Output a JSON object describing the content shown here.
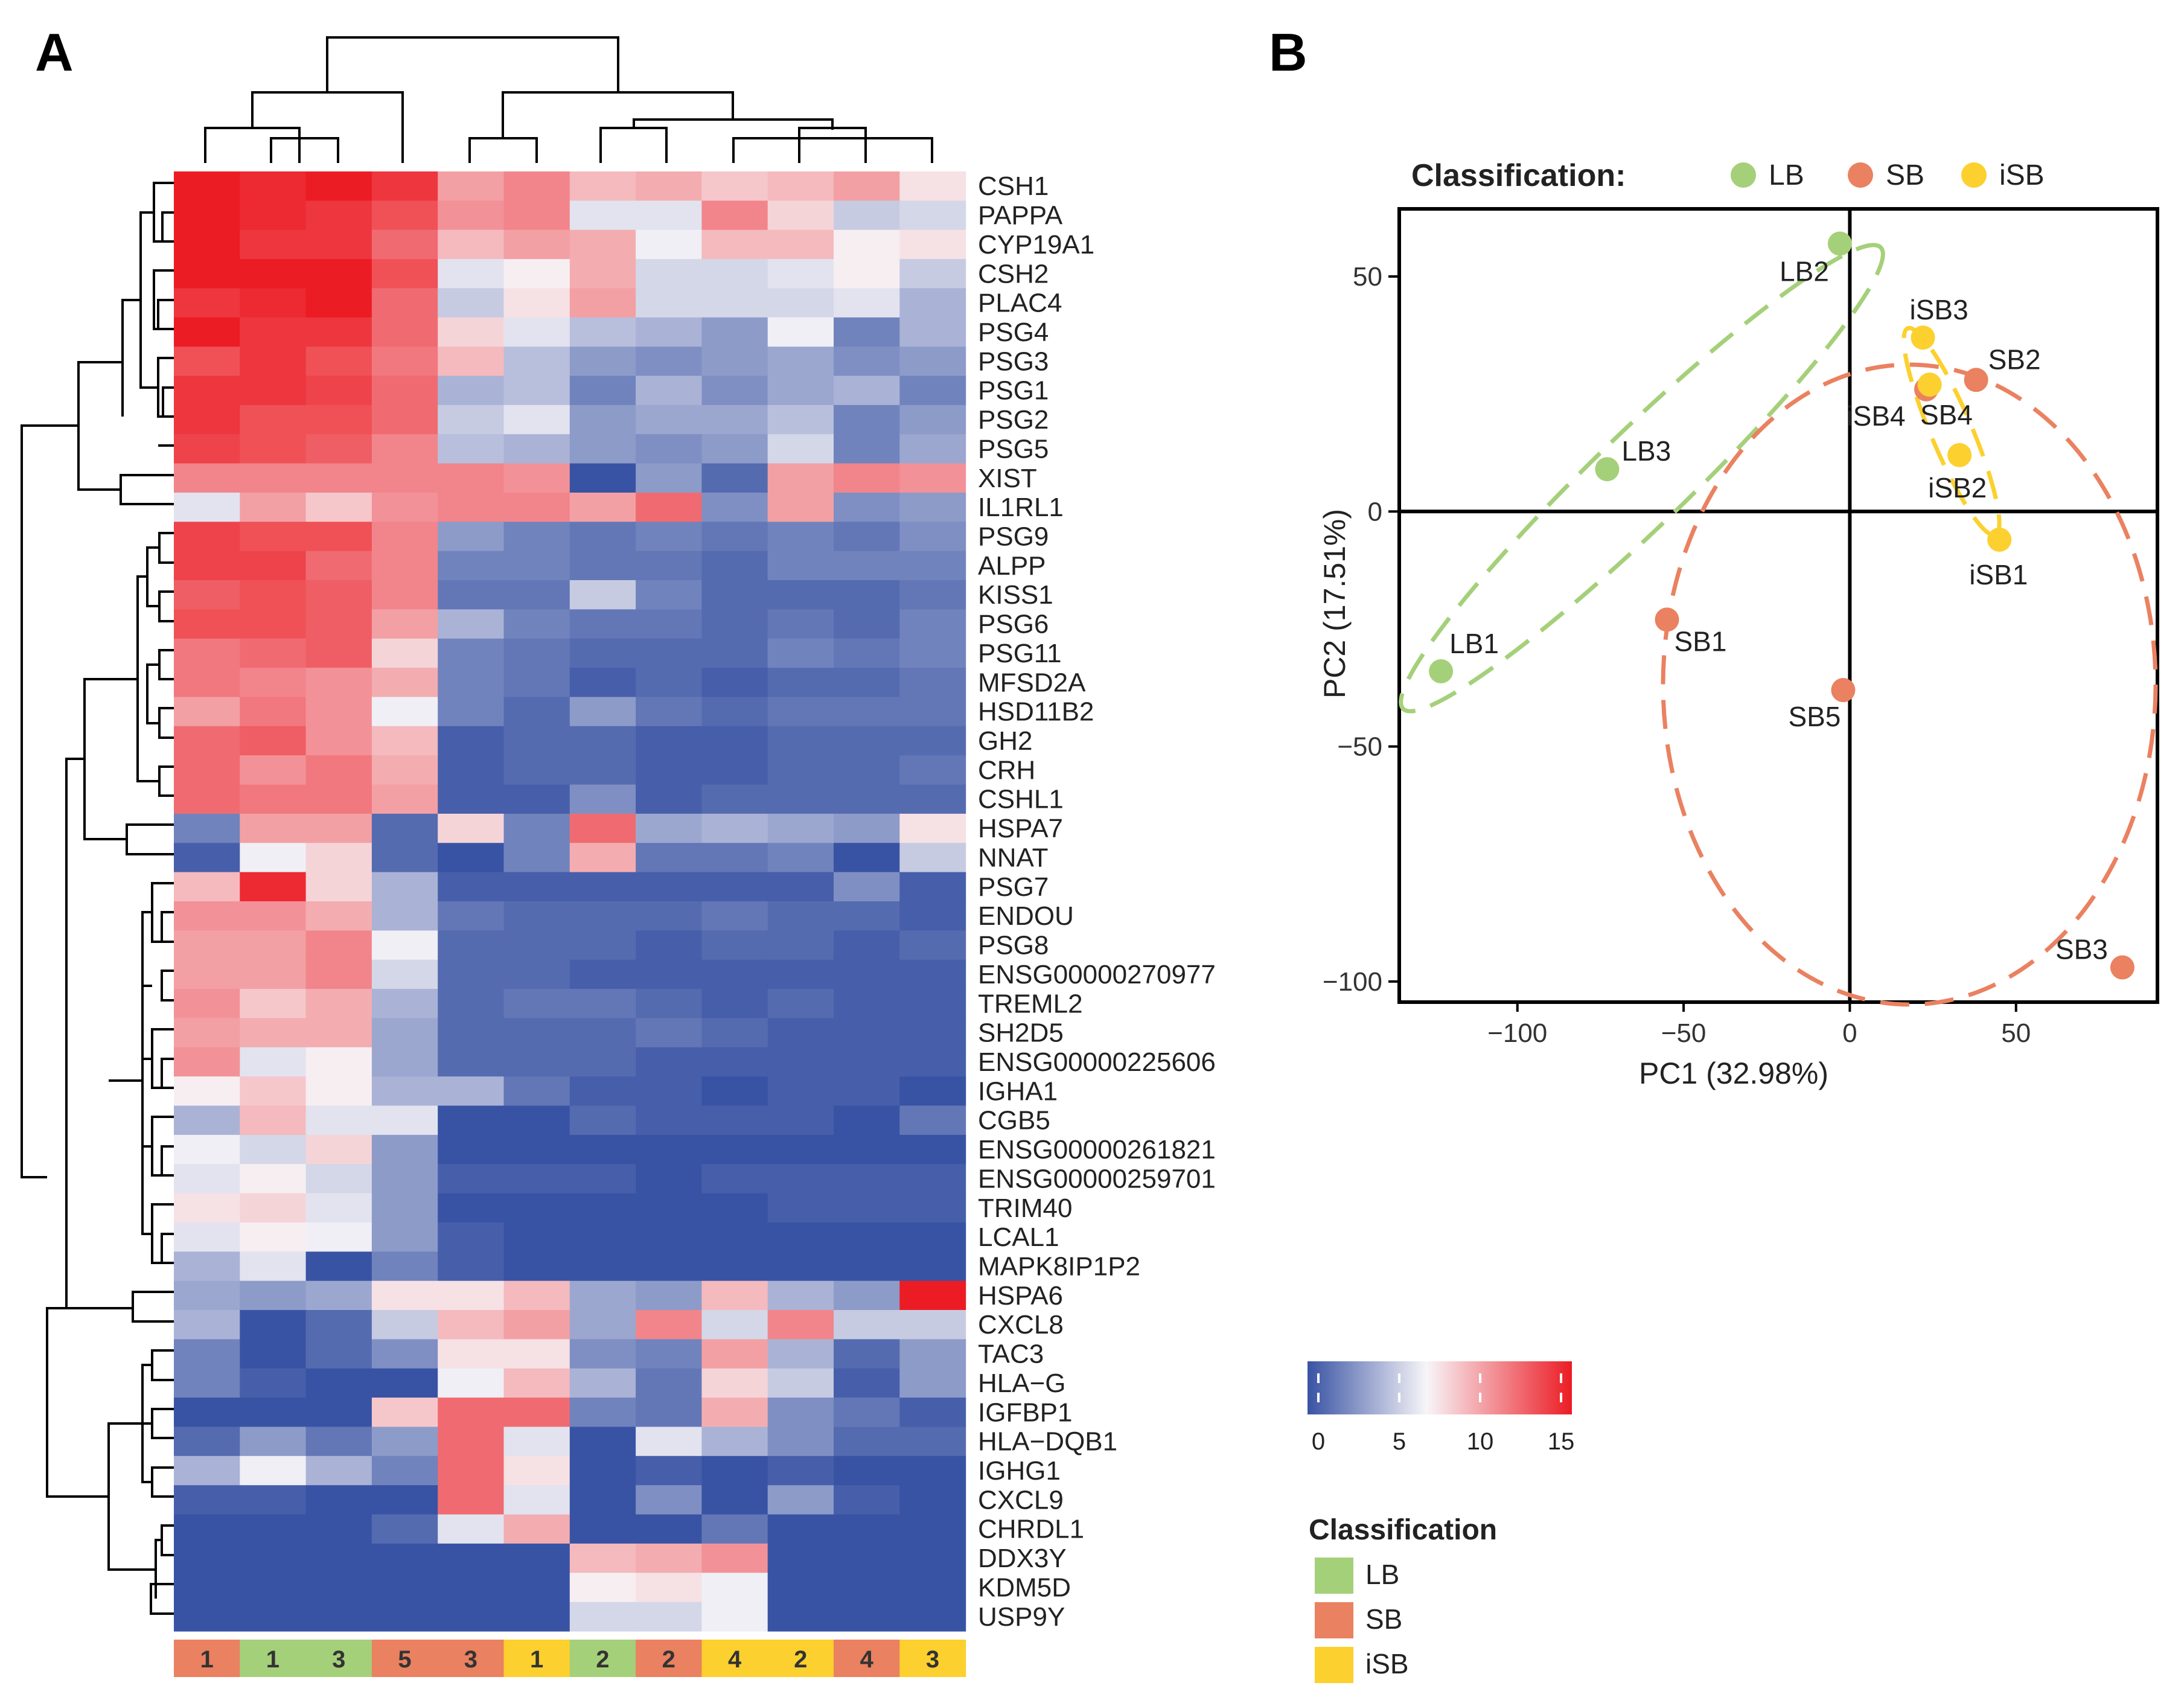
{
  "panel_labels": {
    "a": "A",
    "b": "B"
  },
  "chart_data": [
    {
      "type": "heatmap",
      "panel": "A",
      "rows": [
        "CSH1",
        "PAPPA",
        "CYP19A1",
        "CSH2",
        "PLAC4",
        "PSG4",
        "PSG3",
        "PSG1",
        "PSG2",
        "PSG5",
        "XIST",
        "IL1RL1",
        "PSG9",
        "ALPP",
        "KISS1",
        "PSG6",
        "PSG11",
        "MFSD2A",
        "HSD11B2",
        "GH2",
        "CRH",
        "CSHL1",
        "HSPA7",
        "NNAT",
        "PSG7",
        "ENDOU",
        "PSG8",
        "ENSG00000270977",
        "TREML2",
        "SH2D5",
        "ENSG00000225606",
        "IGHA1",
        "CGB5",
        "ENSG00000261821",
        "ENSG00000259701",
        "TRIM40",
        "LCAL1",
        "MAPK8IP1P2",
        "HSPA6",
        "CXCL8",
        "TAC3",
        "HLA−G",
        "IGFBP1",
        "HLA−DQB1",
        "IGHG1",
        "CXCL9",
        "CHRDL1",
        "DDX3Y",
        "KDM5D",
        "USP9Y"
      ],
      "columns": [
        {
          "label": "1",
          "class": "SB"
        },
        {
          "label": "1",
          "class": "LB"
        },
        {
          "label": "3",
          "class": "LB"
        },
        {
          "label": "5",
          "class": "SB"
        },
        {
          "label": "3",
          "class": "SB"
        },
        {
          "label": "1",
          "class": "iSB"
        },
        {
          "label": "2",
          "class": "LB"
        },
        {
          "label": "2",
          "class": "SB"
        },
        {
          "label": "4",
          "class": "iSB"
        },
        {
          "label": "2",
          "class": "iSB"
        },
        {
          "label": "4",
          "class": "SB"
        },
        {
          "label": "3",
          "class": "iSB"
        }
      ],
      "values": [
        [
          15,
          14.5,
          15,
          14,
          10,
          11,
          9,
          9.5,
          8.5,
          9,
          10,
          7.5
        ],
        [
          15,
          14.5,
          14,
          13,
          10.5,
          11,
          6,
          6,
          11,
          8,
          5,
          5.5
        ],
        [
          15,
          14,
          14,
          12,
          9,
          10,
          9.5,
          6.5,
          9,
          9,
          7,
          7.5
        ],
        [
          15,
          15,
          15,
          13,
          6,
          7,
          9.5,
          5.5,
          5.5,
          6,
          7,
          5
        ],
        [
          14,
          14.5,
          15,
          12,
          5,
          7.5,
          10,
          5.5,
          5.5,
          5.5,
          6,
          4
        ],
        [
          15,
          14,
          14,
          12,
          8,
          6,
          4.5,
          4,
          3,
          6.5,
          2,
          4
        ],
        [
          13,
          14,
          13,
          11.5,
          9,
          4.5,
          3,
          2.5,
          3,
          3.5,
          2.5,
          3
        ],
        [
          14,
          14,
          13.5,
          12,
          4,
          4.5,
          2,
          4,
          2.5,
          3.5,
          4,
          2
        ],
        [
          14,
          13,
          13,
          12,
          5,
          6,
          3,
          3.5,
          3.5,
          4.5,
          2,
          3
        ],
        [
          13.5,
          13,
          12.5,
          11,
          4.5,
          4,
          3,
          2.5,
          3,
          5.5,
          2,
          3.5
        ],
        [
          11,
          11,
          11,
          11,
          11,
          10.5,
          0,
          3,
          1,
          10,
          11,
          10.5
        ],
        [
          6,
          10,
          8.5,
          10.5,
          11,
          11,
          10,
          12,
          2.5,
          10,
          2.5,
          3
        ],
        [
          13.5,
          13,
          13,
          11,
          3,
          2,
          1.5,
          2,
          1.5,
          2,
          1.5,
          2.5
        ],
        [
          13.5,
          13.5,
          12,
          11,
          2,
          2,
          1.5,
          1.5,
          1,
          2,
          2,
          2
        ],
        [
          12.5,
          13,
          12.5,
          11,
          1.5,
          1.5,
          5,
          2,
          1,
          1,
          1,
          1.5
        ],
        [
          13,
          13,
          12.5,
          10,
          4,
          2,
          1.5,
          1.5,
          1,
          1.5,
          1,
          2
        ],
        [
          11.5,
          12,
          12.5,
          8,
          2,
          1.5,
          1,
          1,
          1,
          2,
          1.5,
          2
        ],
        [
          11.5,
          11,
          10.5,
          9.5,
          2,
          1.5,
          0.5,
          1,
          0.5,
          1,
          1,
          1.5
        ],
        [
          10,
          11.5,
          10.5,
          6.5,
          2,
          1,
          3,
          1.5,
          1,
          1.5,
          1.5,
          1.5
        ],
        [
          12,
          12.5,
          10.5,
          9,
          0.5,
          1,
          1,
          0.5,
          0.5,
          1,
          1,
          1
        ],
        [
          12,
          10.5,
          11.5,
          9.5,
          0.5,
          1,
          1,
          0.5,
          0.5,
          1,
          1,
          1.5
        ],
        [
          12,
          11.5,
          11.5,
          10,
          0.5,
          0.5,
          2.5,
          0.5,
          1,
          1,
          1,
          1
        ],
        [
          2,
          10,
          10,
          1,
          8,
          2,
          12,
          3.5,
          4,
          3.5,
          3,
          7.5
        ],
        [
          0.5,
          6.5,
          8,
          1,
          0,
          2,
          9.5,
          1.5,
          1.5,
          2,
          0,
          5
        ],
        [
          9,
          14.5,
          8,
          4,
          0.5,
          0.5,
          0.5,
          0.5,
          0.5,
          0.5,
          2.5,
          0.5
        ],
        [
          10.5,
          10.5,
          9.5,
          4,
          1.5,
          1,
          1,
          1,
          1.5,
          1,
          1,
          0.5
        ],
        [
          10,
          10,
          11,
          6.5,
          1,
          1,
          1,
          0.5,
          1,
          1,
          0.5,
          1
        ],
        [
          10,
          10,
          11,
          5.5,
          1,
          1,
          0.5,
          0.5,
          0.5,
          0.5,
          0.5,
          0.5
        ],
        [
          10.5,
          8.5,
          9.5,
          4,
          1,
          1.5,
          1.5,
          1,
          0.5,
          1,
          0.5,
          0.5
        ],
        [
          10,
          9.5,
          9.5,
          3.5,
          1,
          1,
          1,
          1.5,
          1,
          0.5,
          0.5,
          0.5
        ],
        [
          10.5,
          6,
          7,
          3.5,
          1,
          1,
          1,
          0.5,
          0.5,
          0.5,
          0.5,
          0.5
        ],
        [
          7,
          8.5,
          7,
          4,
          4,
          1.5,
          0.5,
          0.5,
          0,
          0.5,
          0.5,
          0
        ],
        [
          4,
          9,
          6,
          6,
          0,
          0,
          1,
          0.5,
          0.5,
          0.5,
          0,
          1.5
        ],
        [
          6.5,
          5.5,
          8,
          3,
          0,
          0,
          0,
          0,
          0,
          0,
          0,
          0
        ],
        [
          6,
          7,
          5.5,
          3,
          0.5,
          0.5,
          0.5,
          0,
          0.5,
          0.5,
          0.5,
          0.5
        ],
        [
          7.5,
          8,
          6,
          3,
          0,
          0,
          0,
          0,
          0,
          0.5,
          0.5,
          0.5
        ],
        [
          6,
          7,
          6.5,
          3,
          0.5,
          0,
          0,
          0,
          0,
          0,
          0,
          0
        ],
        [
          4,
          6,
          0,
          2,
          0.5,
          0,
          0,
          0,
          0,
          0,
          0,
          0
        ],
        [
          3.5,
          3,
          3.5,
          7.5,
          7.5,
          9,
          3.5,
          3,
          9,
          4,
          3,
          15
        ],
        [
          4,
          0,
          1,
          5,
          9,
          10,
          3.5,
          11,
          5.5,
          11,
          5,
          5
        ],
        [
          2,
          0,
          1,
          2.5,
          7.5,
          7.5,
          2.5,
          2,
          10,
          4,
          1,
          3
        ],
        [
          2,
          0.5,
          0,
          0,
          6.5,
          9,
          4,
          1.5,
          8,
          5,
          0.5,
          3
        ],
        [
          0,
          0,
          0,
          8.5,
          12,
          12,
          2,
          1.5,
          9.5,
          2.5,
          1.5,
          0.5
        ],
        [
          1,
          3,
          1.5,
          3,
          12,
          6,
          0,
          6,
          4,
          2.5,
          1,
          1
        ],
        [
          4,
          6.5,
          4,
          2,
          12,
          7.5,
          0,
          0.5,
          0,
          0.5,
          0,
          0
        ],
        [
          0.5,
          0.5,
          0,
          0,
          12,
          6,
          0,
          2.5,
          0,
          3,
          0.5,
          0
        ],
        [
          0,
          0,
          0,
          1,
          6,
          9.5,
          0,
          0,
          1.5,
          0,
          0,
          0
        ],
        [
          0,
          0,
          0,
          0,
          0,
          0,
          9,
          9.5,
          10.5,
          0,
          0,
          0
        ],
        [
          0,
          0,
          0,
          0,
          0,
          0,
          7,
          7.5,
          6.5,
          0,
          0,
          0
        ],
        [
          0,
          0,
          0,
          0,
          0,
          0,
          5.5,
          5.5,
          6.5,
          0,
          0,
          0
        ]
      ],
      "color_scale": {
        "min": 0,
        "max": 15,
        "ticks": [
          0,
          5,
          10,
          15
        ],
        "colors": [
          "#3953a4",
          "#f7f5f8",
          "#ec1c24"
        ]
      },
      "annotation_legend": {
        "title": "Classification",
        "entries": [
          {
            "label": "LB",
            "color": "#a5d07a"
          },
          {
            "label": "SB",
            "color": "#ea8160"
          },
          {
            "label": "iSB",
            "color": "#fcd02e"
          }
        ]
      }
    },
    {
      "type": "scatter",
      "panel": "B",
      "xlabel": "PC1 (32.98%)",
      "ylabel": "PC2 (17.51%)",
      "xlim": [
        -135,
        92
      ],
      "ylim": [
        -104,
        64
      ],
      "xticks": [
        -100,
        -50,
        0,
        50
      ],
      "yticks": [
        -100,
        -50,
        0,
        50
      ],
      "xtick_labels": [
        "−100",
        "−50",
        "0",
        "50"
      ],
      "ytick_labels": [
        "−100",
        "−50",
        "0",
        "50"
      ],
      "legend_title": "Classification:",
      "legend_position": "top",
      "series": [
        {
          "name": "LB",
          "color": "#a5d07a",
          "points": [
            {
              "label": "LB1",
              "x": -123,
              "y": -34
            },
            {
              "label": "LB2",
              "x": -3,
              "y": 57
            },
            {
              "label": "LB3",
              "x": -73,
              "y": 9
            }
          ]
        },
        {
          "name": "SB",
          "color": "#ea8160",
          "points": [
            {
              "label": "SB1",
              "x": -55,
              "y": -23
            },
            {
              "label": "SB2",
              "x": 38,
              "y": 28
            },
            {
              "label": "SB3",
              "x": 82,
              "y": -97
            },
            {
              "label": "SB4",
              "x": 23,
              "y": 26
            },
            {
              "label": "SB5",
              "x": -2,
              "y": -38
            }
          ]
        },
        {
          "name": "iSB",
          "color": "#fcd02e",
          "points": [
            {
              "label": "iSB1",
              "x": 45,
              "y": -6
            },
            {
              "label": "iSB2",
              "x": 33,
              "y": 12
            },
            {
              "label": "iSB3",
              "x": 22,
              "y": 37
            },
            {
              "label": "iSB4",
              "x": 24,
              "y": 27
            }
          ]
        }
      ]
    }
  ]
}
